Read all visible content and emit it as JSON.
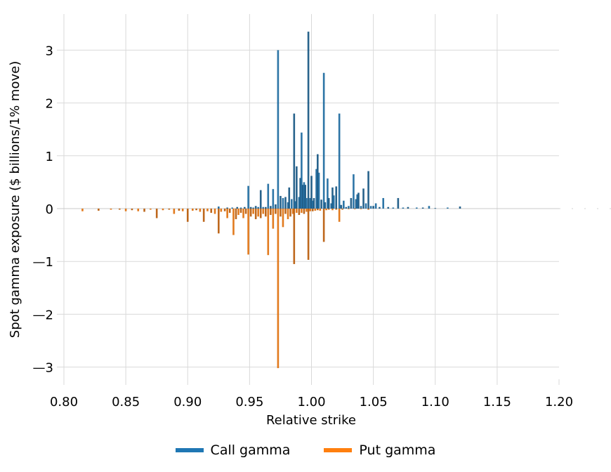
{
  "chart_data": {
    "type": "bar",
    "title": "",
    "xlabel": "Relative strike",
    "ylabel": "Spot gamma exposure ($ billions/1% move)",
    "xlim": [
      0.8,
      1.2
    ],
    "ylim": [
      -3.35,
      3.7
    ],
    "x_ticks": [
      "0.80",
      "0.85",
      "0.90",
      "0.95",
      "1.00",
      "1.05",
      "1.10",
      "1.15",
      "1.20"
    ],
    "x_tick_values": [
      0.8,
      0.85,
      0.9,
      0.95,
      1.0,
      1.05,
      1.1,
      1.15,
      1.2
    ],
    "y_ticks": [
      "3",
      "2",
      "1",
      "0",
      "—1",
      "—2",
      "—3"
    ],
    "y_tick_values": [
      3,
      2,
      1,
      0,
      -1,
      -2,
      -3
    ],
    "grid": true,
    "legend_position": "bottom-center",
    "series": [
      {
        "name": "Call gamma",
        "color": "#1f77b4",
        "points": [
          [
            0.925,
            0.04
          ],
          [
            0.932,
            0.02
          ],
          [
            0.936,
            0.02
          ],
          [
            0.94,
            0.03
          ],
          [
            0.943,
            0.02
          ],
          [
            0.946,
            0.03
          ],
          [
            0.949,
            0.43
          ],
          [
            0.951,
            0.03
          ],
          [
            0.953,
            0.02
          ],
          [
            0.955,
            0.05
          ],
          [
            0.957,
            0.03
          ],
          [
            0.959,
            0.35
          ],
          [
            0.961,
            0.03
          ],
          [
            0.963,
            0.03
          ],
          [
            0.965,
            0.47
          ],
          [
            0.967,
            0.05
          ],
          [
            0.969,
            0.37
          ],
          [
            0.971,
            0.08
          ],
          [
            0.973,
            3.0
          ],
          [
            0.975,
            0.24
          ],
          [
            0.977,
            0.2
          ],
          [
            0.979,
            0.22
          ],
          [
            0.981,
            0.12
          ],
          [
            0.982,
            0.4
          ],
          [
            0.984,
            0.18
          ],
          [
            0.986,
            1.8
          ],
          [
            0.987,
            0.14
          ],
          [
            0.988,
            0.8
          ],
          [
            0.99,
            0.22
          ],
          [
            0.991,
            0.58
          ],
          [
            0.992,
            1.44
          ],
          [
            0.993,
            0.45
          ],
          [
            0.994,
            0.5
          ],
          [
            0.995,
            0.45
          ],
          [
            0.996,
            0.2
          ],
          [
            0.9975,
            3.35
          ],
          [
            0.999,
            0.2
          ],
          [
            1.0,
            0.62
          ],
          [
            1.001,
            0.15
          ],
          [
            1.002,
            0.2
          ],
          [
            1.004,
            0.75
          ],
          [
            1.005,
            1.03
          ],
          [
            1.006,
            0.68
          ],
          [
            1.008,
            0.17
          ],
          [
            1.01,
            2.57
          ],
          [
            1.011,
            0.12
          ],
          [
            1.013,
            0.57
          ],
          [
            1.014,
            0.2
          ],
          [
            1.016,
            0.1
          ],
          [
            1.017,
            0.4
          ],
          [
            1.018,
            0.25
          ],
          [
            1.02,
            0.42
          ],
          [
            1.0225,
            1.8
          ],
          [
            1.024,
            0.07
          ],
          [
            1.026,
            0.15
          ],
          [
            1.028,
            0.03
          ],
          [
            1.03,
            0.05
          ],
          [
            1.032,
            0.2
          ],
          [
            1.034,
            0.65
          ],
          [
            1.036,
            0.18
          ],
          [
            1.037,
            0.27
          ],
          [
            1.038,
            0.3
          ],
          [
            1.04,
            0.05
          ],
          [
            1.042,
            0.38
          ],
          [
            1.044,
            0.1
          ],
          [
            1.046,
            0.71
          ],
          [
            1.048,
            0.05
          ],
          [
            1.05,
            0.05
          ],
          [
            1.052,
            0.1
          ],
          [
            1.055,
            0.03
          ],
          [
            1.058,
            0.2
          ],
          [
            1.062,
            0.03
          ],
          [
            1.066,
            0.02
          ],
          [
            1.07,
            0.2
          ],
          [
            1.074,
            0.02
          ],
          [
            1.078,
            0.03
          ],
          [
            1.085,
            0.02
          ],
          [
            1.09,
            0.02
          ],
          [
            1.095,
            0.05
          ],
          [
            1.1,
            0.01
          ],
          [
            1.11,
            0.02
          ],
          [
            1.12,
            0.04
          ]
        ]
      },
      {
        "name": "Put gamma",
        "color": "#ff7f0e",
        "points": [
          [
            0.815,
            -0.05
          ],
          [
            0.828,
            -0.04
          ],
          [
            0.838,
            -0.02
          ],
          [
            0.845,
            -0.02
          ],
          [
            0.85,
            -0.05
          ],
          [
            0.855,
            -0.03
          ],
          [
            0.86,
            -0.05
          ],
          [
            0.865,
            -0.06
          ],
          [
            0.87,
            -0.02
          ],
          [
            0.875,
            -0.18
          ],
          [
            0.88,
            -0.03
          ],
          [
            0.885,
            -0.02
          ],
          [
            0.889,
            -0.1
          ],
          [
            0.893,
            -0.04
          ],
          [
            0.896,
            -0.05
          ],
          [
            0.9,
            -0.25
          ],
          [
            0.904,
            -0.04
          ],
          [
            0.907,
            -0.03
          ],
          [
            0.91,
            -0.06
          ],
          [
            0.913,
            -0.25
          ],
          [
            0.916,
            -0.05
          ],
          [
            0.919,
            -0.08
          ],
          [
            0.922,
            -0.1
          ],
          [
            0.925,
            -0.47
          ],
          [
            0.927,
            -0.06
          ],
          [
            0.93,
            -0.05
          ],
          [
            0.932,
            -0.18
          ],
          [
            0.934,
            -0.08
          ],
          [
            0.937,
            -0.5
          ],
          [
            0.939,
            -0.2
          ],
          [
            0.941,
            -0.12
          ],
          [
            0.943,
            -0.08
          ],
          [
            0.945,
            -0.18
          ],
          [
            0.947,
            -0.1
          ],
          [
            0.949,
            -0.87
          ],
          [
            0.951,
            -0.15
          ],
          [
            0.953,
            -0.1
          ],
          [
            0.955,
            -0.2
          ],
          [
            0.957,
            -0.15
          ],
          [
            0.959,
            -0.18
          ],
          [
            0.961,
            -0.1
          ],
          [
            0.963,
            -0.15
          ],
          [
            0.965,
            -0.88
          ],
          [
            0.967,
            -0.12
          ],
          [
            0.969,
            -0.38
          ],
          [
            0.971,
            -0.1
          ],
          [
            0.973,
            -3.02
          ],
          [
            0.975,
            -0.15
          ],
          [
            0.977,
            -0.35
          ],
          [
            0.979,
            -0.1
          ],
          [
            0.981,
            -0.2
          ],
          [
            0.983,
            -0.15
          ],
          [
            0.985,
            -0.1
          ],
          [
            0.986,
            -1.05
          ],
          [
            0.988,
            -0.08
          ],
          [
            0.99,
            -0.12
          ],
          [
            0.992,
            -0.08
          ],
          [
            0.994,
            -0.1
          ],
          [
            0.996,
            -0.06
          ],
          [
            0.9975,
            -0.97
          ],
          [
            0.999,
            -0.05
          ],
          [
            1.001,
            -0.05
          ],
          [
            1.003,
            -0.04
          ],
          [
            1.005,
            -0.03
          ],
          [
            1.007,
            -0.04
          ],
          [
            1.01,
            -0.63
          ],
          [
            1.012,
            -0.03
          ],
          [
            1.014,
            -0.02
          ],
          [
            1.017,
            -0.03
          ],
          [
            1.02,
            -0.02
          ],
          [
            1.0225,
            -0.25
          ],
          [
            1.025,
            -0.02
          ],
          [
            1.03,
            -0.01
          ],
          [
            1.035,
            -0.01
          ],
          [
            1.04,
            -0.01
          ],
          [
            1.046,
            -0.02
          ]
        ]
      }
    ]
  }
}
